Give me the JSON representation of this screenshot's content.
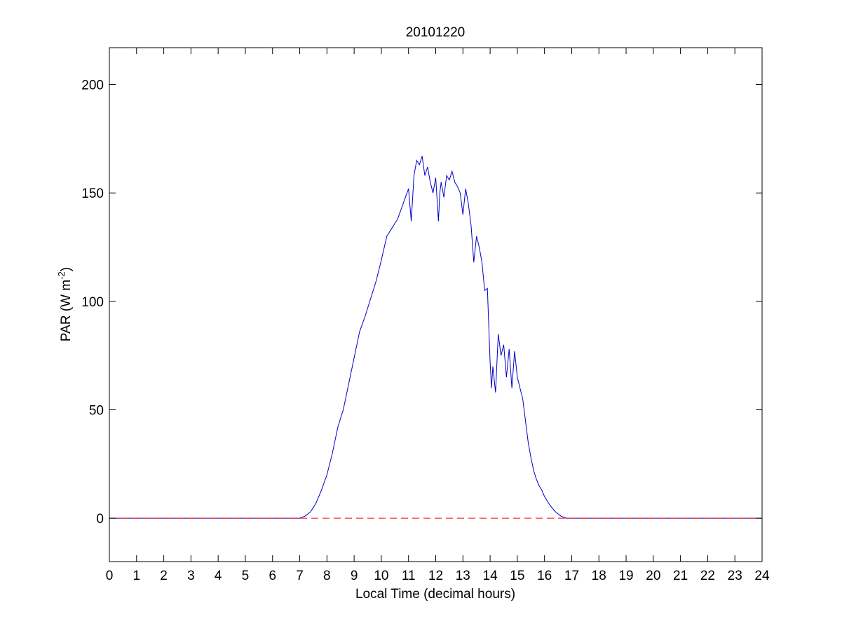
{
  "chart_data": {
    "type": "line",
    "title": "20101220",
    "xlabel": "Local Time (decimal hours)",
    "ylabel": {
      "main": "PAR (W m",
      "superscript": "-2",
      "close": ")"
    },
    "xlim": [
      0,
      24
    ],
    "ylim": [
      -20,
      217
    ],
    "xticks": [
      0,
      1,
      2,
      3,
      4,
      5,
      6,
      7,
      8,
      9,
      10,
      11,
      12,
      13,
      14,
      15,
      16,
      17,
      18,
      19,
      20,
      21,
      22,
      23,
      24
    ],
    "yticks": [
      0,
      50,
      100,
      150,
      200
    ],
    "grid": false,
    "series": [
      {
        "color": "#0000c8",
        "style": "solid",
        "x": [
          0,
          7.0,
          7.2,
          7.4,
          7.6,
          7.8,
          8.0,
          8.2,
          8.4,
          8.6,
          8.8,
          9.0,
          9.2,
          9.4,
          9.6,
          9.8,
          10.0,
          10.2,
          10.4,
          10.6,
          10.8,
          11.0,
          11.1,
          11.2,
          11.3,
          11.4,
          11.5,
          11.6,
          11.7,
          11.8,
          11.9,
          12.0,
          12.1,
          12.15,
          12.2,
          12.3,
          12.4,
          12.5,
          12.6,
          12.7,
          12.8,
          12.9,
          13.0,
          13.1,
          13.2,
          13.3,
          13.4,
          13.5,
          13.6,
          13.7,
          13.8,
          13.9,
          14.0,
          14.05,
          14.1,
          14.2,
          14.3,
          14.4,
          14.5,
          14.6,
          14.7,
          14.8,
          14.9,
          15.0,
          15.1,
          15.2,
          15.3,
          15.4,
          15.5,
          15.6,
          15.7,
          15.8,
          15.9,
          16.0,
          16.2,
          16.4,
          16.6,
          16.8,
          17.0,
          17.2,
          24
        ],
        "y": [
          0,
          0,
          1,
          3,
          7,
          13,
          20,
          30,
          42,
          50,
          62,
          74,
          86,
          93,
          101,
          109,
          119,
          130,
          134,
          138,
          145,
          152,
          137,
          158,
          165,
          163,
          167,
          158,
          162,
          155,
          150,
          157,
          137,
          150,
          155,
          148,
          158,
          156,
          160,
          155,
          153,
          150,
          140,
          152,
          145,
          135,
          118,
          130,
          125,
          118,
          105,
          106,
          72,
          60,
          70,
          58,
          85,
          75,
          80,
          65,
          78,
          60,
          77,
          65,
          60,
          55,
          45,
          35,
          28,
          22,
          18,
          15,
          13,
          10,
          6,
          3,
          1,
          0,
          0,
          0,
          0
        ]
      },
      {
        "color": "#ff0000",
        "style": "dashed",
        "x": [
          0,
          24
        ],
        "y": [
          0,
          0
        ]
      }
    ]
  }
}
